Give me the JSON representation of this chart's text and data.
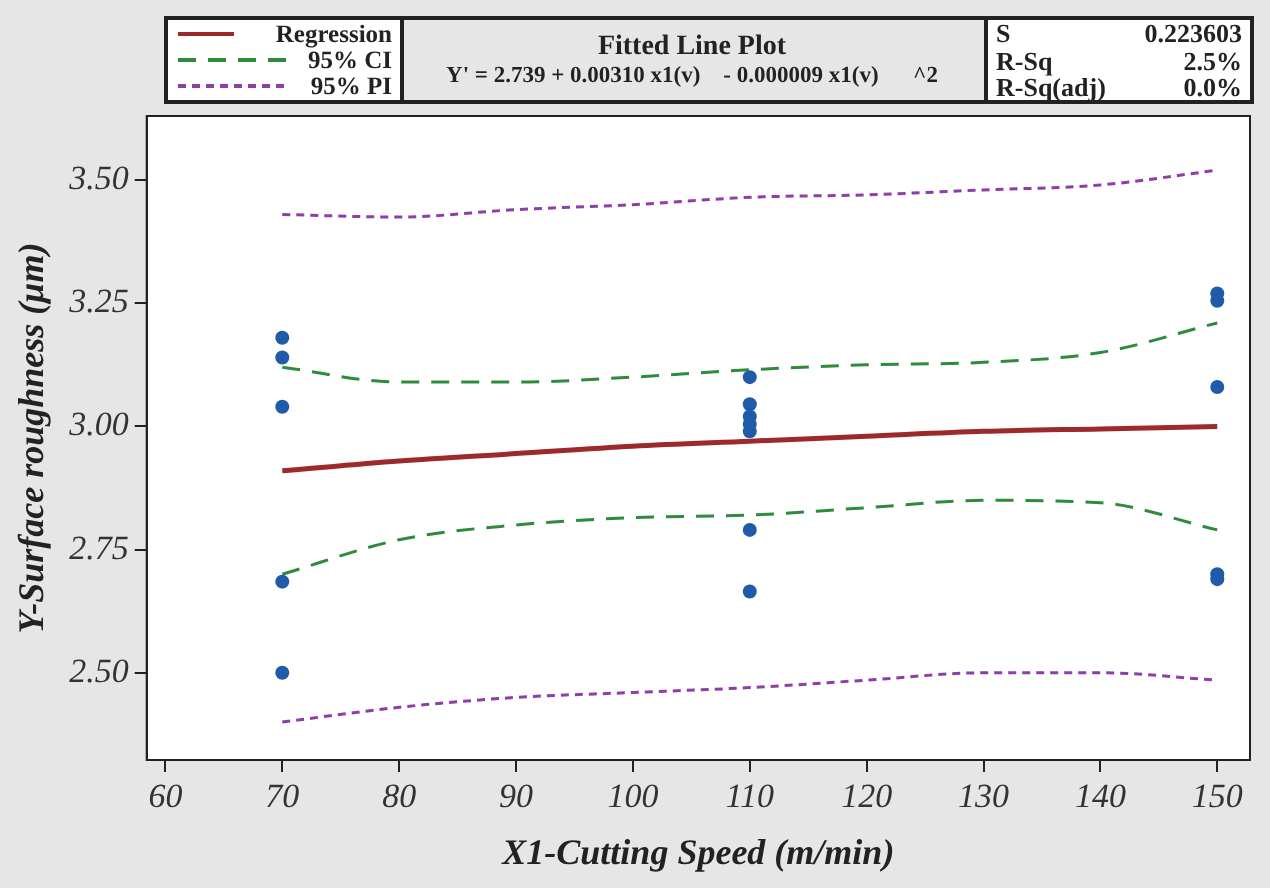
{
  "chart_data": {
    "type": "line",
    "title": "Fitted Line Plot",
    "subtitle": "Y' = 2.739 + 0.00310 x1(v)    - 0.000009 x1(v)      ^2",
    "xlabel": "X1-Cutting Speed (m/min)",
    "ylabel": "Y-Surface roughness (μm)",
    "annotations": [
      "S 0.223603",
      "R-Sq 2.5%",
      "R-Sq(adj) 0.0%"
    ],
    "xlim": [
      58.4,
      152.8
    ],
    "xticks": [
      60,
      70,
      80,
      90,
      100,
      110,
      120,
      130,
      140,
      150
    ],
    "ylim": [
      2.323,
      3.63
    ],
    "yticks": [
      {
        "value": 2.5,
        "label": "2.50"
      },
      {
        "value": 2.75,
        "label": "2.75"
      },
      {
        "value": 3,
        "label": "3.00"
      },
      {
        "value": 3.25,
        "label": "3.25"
      },
      {
        "value": 3.5,
        "label": "3.50"
      }
    ],
    "grid": false,
    "legend": "top left",
    "series": [
      {
        "type": "scatter",
        "color": "#1f5ba8",
        "marker": "circle",
        "x": [
          70,
          70,
          70,
          70,
          70,
          110,
          110,
          110,
          110,
          110,
          110,
          110,
          150,
          150,
          150,
          150,
          150
        ],
        "values": [
          3.18,
          3.14,
          3.04,
          2.685,
          2.5,
          3.1,
          3.045,
          3.02,
          3.005,
          2.99,
          2.79,
          2.665,
          3.27,
          3.255,
          3.08,
          2.7,
          2.69
        ]
      },
      {
        "name": "Regression",
        "color": "#9c2a2a",
        "marker": "none",
        "line_style": "solid",
        "x": [
          70,
          80,
          90,
          100,
          110,
          120,
          130,
          140,
          150
        ],
        "values": [
          2.91,
          2.93,
          2.945,
          2.96,
          2.97,
          2.98,
          2.99,
          2.995,
          3.0
        ]
      },
      {
        "name": "95% CI",
        "color": "#2e8b3e",
        "marker": "none",
        "line_style": "dashed",
        "x": [
          70,
          80,
          90,
          100,
          110,
          120,
          130,
          140,
          150
        ],
        "values": [
          3.12,
          3.09,
          3.09,
          3.1,
          3.115,
          3.125,
          3.13,
          3.15,
          3.21
        ]
      },
      {
        "color": "#2e8b3e",
        "marker": "none",
        "line_style": "dashed",
        "x": [
          70,
          80,
          90,
          100,
          110,
          120,
          130,
          140,
          150
        ],
        "values": [
          2.7,
          2.77,
          2.8,
          2.815,
          2.82,
          2.835,
          2.85,
          2.845,
          2.79
        ]
      },
      {
        "name": "95% PI",
        "color": "#8e3ea8",
        "marker": "none",
        "line_style": "dotted",
        "x": [
          70,
          80,
          90,
          100,
          110,
          120,
          130,
          140,
          150
        ],
        "values": [
          3.43,
          3.425,
          3.44,
          3.45,
          3.465,
          3.47,
          3.48,
          3.49,
          3.52
        ]
      },
      {
        "color": "#8e3ea8",
        "marker": "none",
        "line_style": "dotted",
        "x": [
          70,
          80,
          90,
          100,
          110,
          120,
          130,
          140,
          150
        ],
        "values": [
          2.4,
          2.43,
          2.45,
          2.46,
          2.47,
          2.485,
          2.5,
          2.5,
          2.485
        ]
      }
    ]
  }
}
